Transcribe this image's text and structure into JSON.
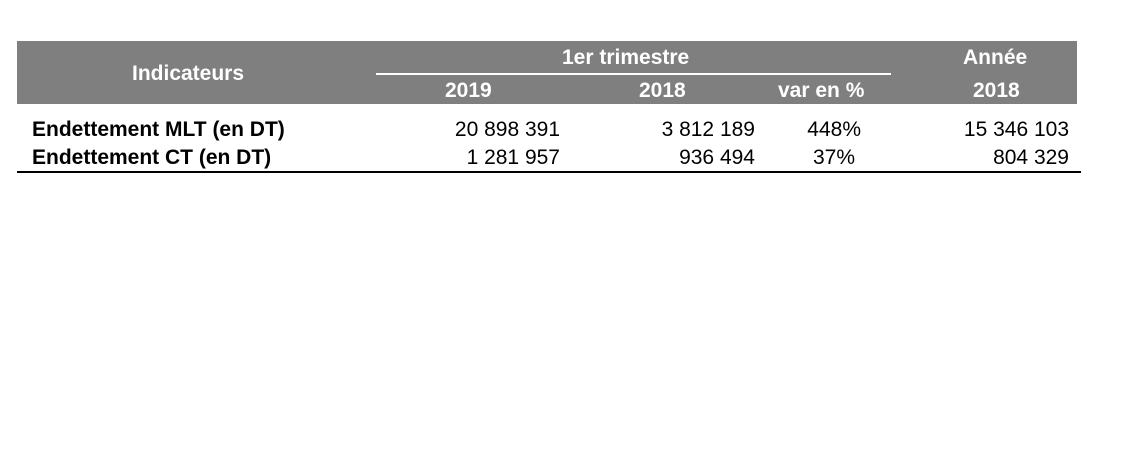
{
  "table": {
    "header": {
      "indicators_label": "Indicateurs",
      "q1_group_label": "1er trimestre",
      "year_group_label": "Année",
      "col_2019": "2019",
      "col_2018": "2018",
      "col_var": "var en %",
      "col_year_2018": "2018"
    },
    "rows": [
      {
        "label": "Endettement MLT (en DT)",
        "v2019": "20 898 391",
        "v2018": "3 812 189",
        "var": "448%",
        "year2018": "15 346 103"
      },
      {
        "label": "Endettement CT (en DT)",
        "v2019": "1 281 957",
        "v2018": "936 494",
        "var": "37%",
        "year2018": "804 329"
      }
    ],
    "colors": {
      "header_bg": "#7f7f7f",
      "header_text": "#ffffff",
      "body_text": "#000000"
    }
  }
}
